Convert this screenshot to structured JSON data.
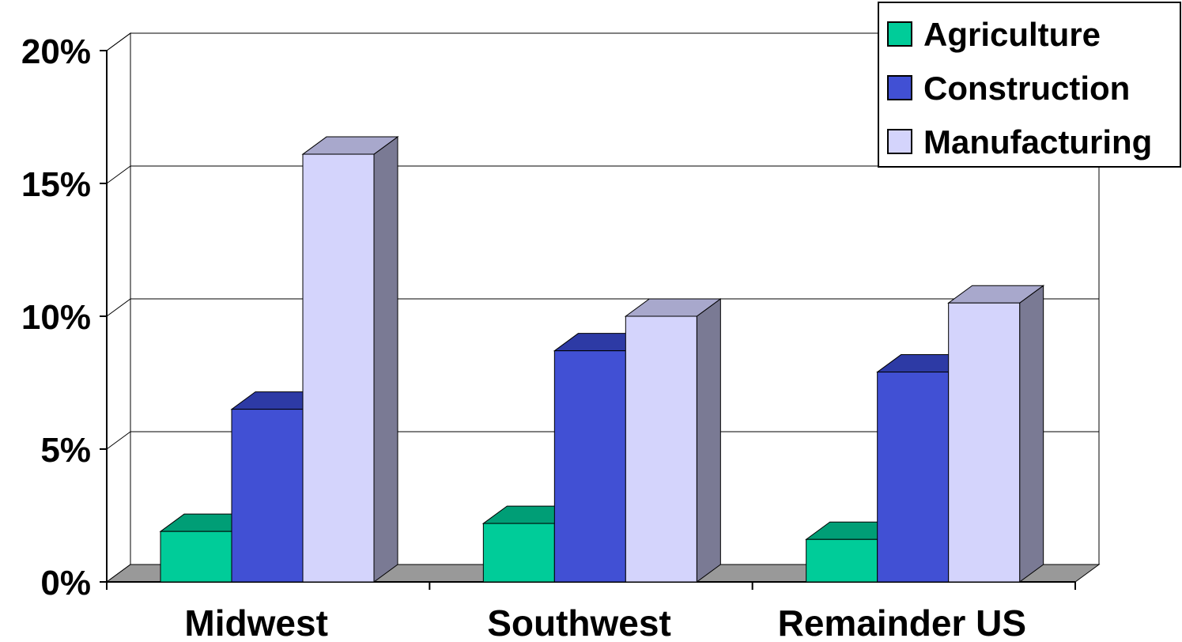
{
  "chart_data": {
    "type": "bar",
    "categories": [
      "Midwest",
      "Southwest",
      "Remainder US"
    ],
    "series": [
      {
        "name": "Agriculture",
        "values": [
          1.9,
          2.2,
          1.6
        ],
        "color": "#00CC99",
        "top_color": "#009E76",
        "side_color": "#007A5B"
      },
      {
        "name": "Construction",
        "values": [
          6.5,
          8.7,
          7.9
        ],
        "color": "#4150D4",
        "top_color": "#2D3AA5",
        "side_color": "#243083"
      },
      {
        "name": "Manufacturing",
        "values": [
          16.1,
          10.0,
          10.5
        ],
        "color": "#D4D4FC",
        "top_color": "#A8A8CC",
        "side_color": "#7A7A94"
      }
    ],
    "y_ticks": [
      "0%",
      "5%",
      "10%",
      "15%",
      "20%"
    ],
    "ylim": [
      0,
      20
    ],
    "grid": true,
    "three_d": true,
    "legend_position": "top-right",
    "floor_color": "#999999"
  }
}
